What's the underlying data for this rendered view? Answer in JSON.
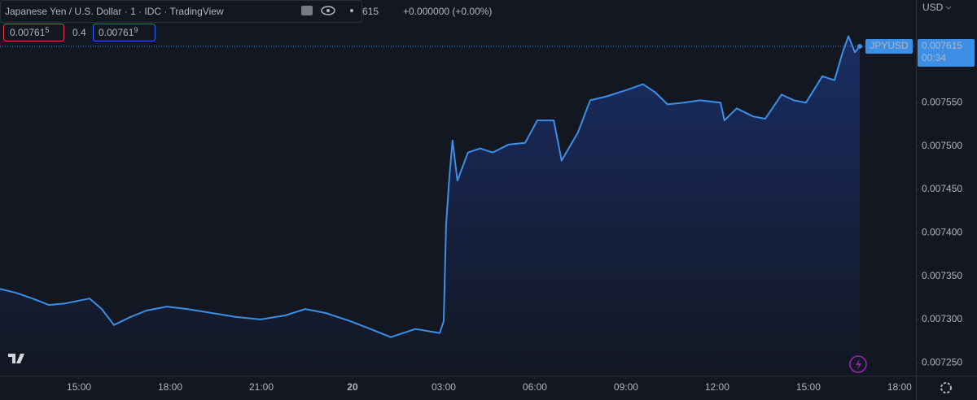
{
  "chart_data": {
    "type": "line",
    "title": "Japanese Yen / U.S. Dollar · 1 · IDC · TradingView",
    "change": "+0.000000 (+0.00%)",
    "bid": "0.00761",
    "bid_digit": "5",
    "spread": "0.4",
    "ask": "0.00761",
    "ask_digit": "9",
    "countdown": "00:34",
    "y_unit": "USD",
    "x": [
      12.4,
      12.94,
      13.47,
      14.01,
      14.54,
      15.35,
      15.75,
      16.15,
      16.69,
      17.22,
      17.89,
      18.56,
      19.37,
      20.17,
      20.97,
      21.78,
      22.45,
      23.12,
      23.92,
      24.59,
      25.26,
      26.07,
      26.87,
      27.0,
      27.08,
      27.19,
      27.29,
      27.45,
      27.8,
      28.2,
      28.61,
      29.14,
      29.68,
      30.08,
      30.62,
      30.88,
      31.42,
      31.82,
      32.36,
      33.03,
      33.56,
      33.96,
      34.37,
      34.9,
      35.44,
      36.11,
      36.24,
      36.64,
      37.18,
      37.58,
      38.12,
      38.52,
      38.92,
      39.46,
      39.86,
      40.13,
      40.32,
      40.53,
      40.69
    ],
    "series": [
      {
        "name": "JPYUSD",
        "color": "#3d8fe6",
        "values": [
          0.0073352,
          0.0073306,
          0.0073241,
          0.0073167,
          0.0073185,
          0.0073241,
          0.007312,
          0.0072935,
          0.0073028,
          0.0073102,
          0.0073148,
          0.007312,
          0.0073074,
          0.0073028,
          0.0073,
          0.0073046,
          0.007312,
          0.0073074,
          0.0072981,
          0.0072889,
          0.0072796,
          0.0072889,
          0.0072843,
          0.0072981,
          0.0074093,
          0.0074648,
          0.0075065,
          0.0074602,
          0.0074926,
          0.0074972,
          0.0074926,
          0.0075018,
          0.0075037,
          0.0075296,
          0.0075296,
          0.0074833,
          0.0075157,
          0.0075528,
          0.0075574,
          0.0075648,
          0.0075713,
          0.007562,
          0.0075481,
          0.00755,
          0.0075528,
          0.00755,
          0.0075296,
          0.0075435,
          0.0075342,
          0.0075315,
          0.0075593,
          0.0075528,
          0.00755,
          0.0075805,
          0.0075759,
          0.0076083,
          0.0076268,
          0.0076083,
          0.007615
        ]
      }
    ],
    "xlim": [
      12.4,
      42.54
    ],
    "xticks": [
      {
        "value": 15,
        "label": "15:00"
      },
      {
        "value": 18,
        "label": "18:00"
      },
      {
        "value": 21,
        "label": "21:00"
      },
      {
        "value": 24,
        "label": "20"
      },
      {
        "value": 27,
        "label": "03:00"
      },
      {
        "value": 30,
        "label": "06:00"
      },
      {
        "value": 33,
        "label": "09:00"
      },
      {
        "value": 36,
        "label": "12:00"
      },
      {
        "value": 39,
        "label": "15:00"
      },
      {
        "value": 42,
        "label": "18:00"
      }
    ],
    "ylim": [
      0.0072352,
      0.0076685
    ],
    "yticks": [
      {
        "value": 0.00725,
        "label": "0.007250"
      },
      {
        "value": 0.0073,
        "label": "0.007300"
      },
      {
        "value": 0.00735,
        "label": "0.007350"
      },
      {
        "value": 0.0074,
        "label": "0.007400"
      },
      {
        "value": 0.00745,
        "label": "0.007450"
      },
      {
        "value": 0.0075,
        "label": "0.007500"
      },
      {
        "value": 0.00755,
        "label": "0.007550"
      }
    ],
    "grid": false
  }
}
